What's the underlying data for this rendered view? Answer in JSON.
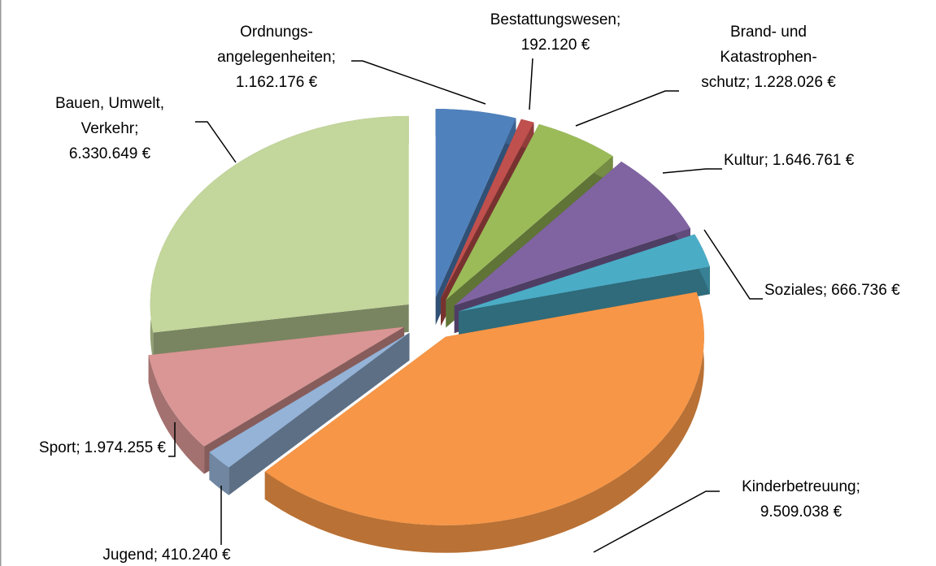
{
  "chart_data": {
    "type": "pie",
    "categories": [
      "Ordnungs-\nangelegenheiten;",
      "Bestattungswesen;",
      "Brand- und\nKatastrophen-\nschutz;",
      "Kultur;",
      "Soziales;",
      "Kinderbetreuung;",
      "Jugend;",
      "Sport;",
      "Bauen, Umwelt,\nVerkehr;"
    ],
    "values": [
      1162176,
      192120,
      1228026,
      1646761,
      666736,
      9509038,
      410240,
      1974255,
      6330649
    ],
    "value_labels": [
      "1.162.176 €",
      "192.120 €",
      "1.228.026 €",
      "1.646.761 €",
      "666.736 €",
      "9.509.038 €",
      "410.240 €",
      "1.974.255 €",
      "6.330.649 €"
    ],
    "colors": [
      "#4f81bd",
      "#c0504d",
      "#9bbb59",
      "#8064a2",
      "#4bacc6",
      "#f79646",
      "#95b3d7",
      "#d99694",
      "#c3d69b"
    ],
    "exploded": true,
    "three_d": true
  }
}
